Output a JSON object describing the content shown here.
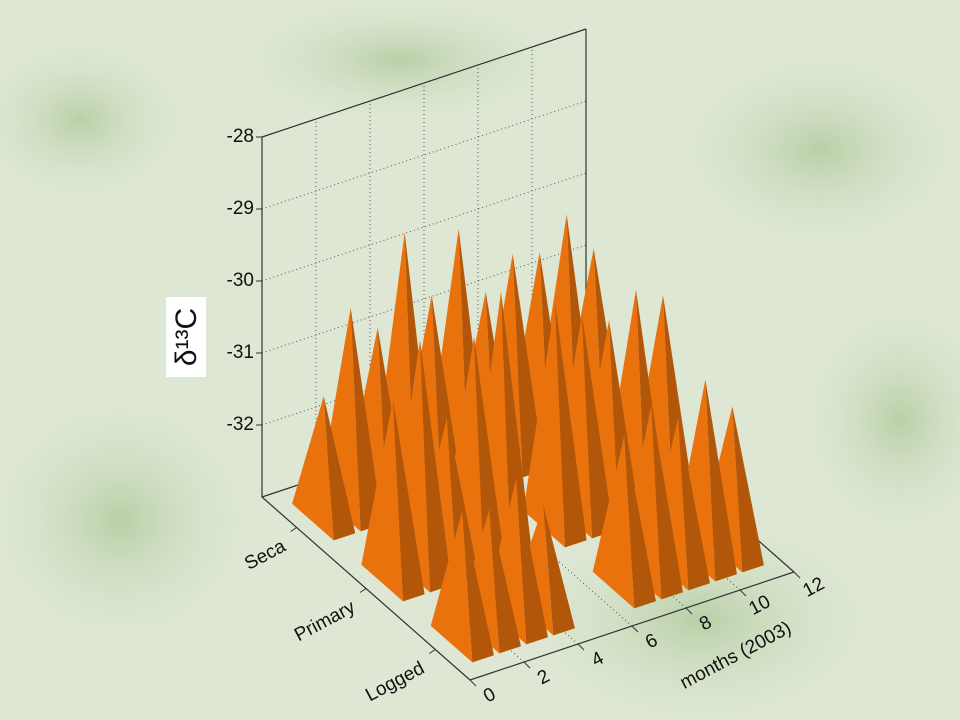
{
  "chart_data": {
    "type": "pyramid3d",
    "zlabel": "δ¹³C",
    "xlabel": "months (2003)",
    "rows": [
      "Logged",
      "Primary",
      "Seca"
    ],
    "xlim": [
      0,
      12
    ],
    "xticks": [
      0,
      2,
      4,
      6,
      8,
      10,
      12
    ],
    "zlim": [
      -33,
      -28
    ],
    "zticks": [
      -32,
      -31,
      -30,
      -29,
      -28
    ],
    "x": [
      1,
      2,
      3,
      4,
      5,
      6,
      7,
      8,
      9,
      10,
      11
    ],
    "series": [
      {
        "name": "Logged",
        "color": "#d96a0c",
        "values": [
          -31.2,
          -31.3,
          -31.0,
          -31.5,
          null,
          null,
          -30.9,
          -30.6,
          -30.9,
          -30.5,
          -31.0
        ]
      },
      {
        "name": "Primary",
        "color": "#d96a0c",
        "values": [
          -30.5,
          -29.8,
          -31.0,
          -30.0,
          -29.5,
          null,
          -29.9,
          -30.2,
          -30.4,
          -30.1,
          -30.3
        ]
      },
      {
        "name": "Seca",
        "color": "#d96a0c",
        "values": [
          -31.3,
          -30.2,
          -30.6,
          -29.4,
          -30.4,
          -29.6,
          -30.6,
          -30.2,
          -30.3,
          -29.9,
          -30.5
        ]
      }
    ],
    "grid": true
  }
}
